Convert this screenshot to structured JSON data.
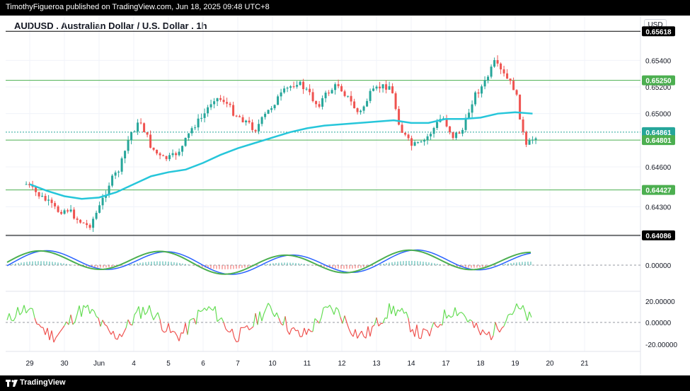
{
  "header": {
    "publisher": "TimothyFigueroa published on TradingView.com, Jun 18, 2025 09:48 UTC+8",
    "title": "AUDUSD . Australian Dollar / U.S. Dollar . 1h",
    "currency": "USD"
  },
  "footer": {
    "brand": "TradingView"
  },
  "chart_data": {
    "type": "line",
    "x": [
      "29",
      "30",
      "Jun",
      "4",
      "5",
      "6",
      "7",
      "10",
      "11",
      "12",
      "13",
      "14",
      "17",
      "18",
      "19",
      "20",
      "21"
    ],
    "price_axis_labels": [
      "0.65400",
      "0.65200",
      "0.65000",
      "0.64600",
      "0.64300",
      "0.00000",
      "20.00000",
      "0.00000",
      "-20.00000"
    ],
    "price_levels": [
      {
        "value": 0.65618,
        "label": "0.65618",
        "color": "#000000"
      },
      {
        "value": 0.6525,
        "label": "0.65250",
        "color": "#4caf50"
      },
      {
        "value": 0.64861,
        "label": "0.64861",
        "color": "#26a69a"
      },
      {
        "value": 0.64801,
        "label": "0.64801",
        "color": "#4caf50"
      },
      {
        "value": 0.64427,
        "label": "0.64427",
        "color": "#4caf50"
      },
      {
        "value": 0.64086,
        "label": "0.64086",
        "color": "#000000"
      }
    ],
    "ylim": [
      0.6408,
      0.6563
    ],
    "series": [
      {
        "x": [
          0,
          0.5,
          1,
          1.5,
          2,
          2.5,
          3,
          3.5,
          4,
          4.5,
          5,
          5.5,
          6,
          6.5,
          7,
          7.5,
          8,
          8.5,
          9,
          9.5,
          10,
          10.5,
          11,
          11.5,
          12,
          12.5,
          13,
          13.5,
          14,
          14.5
        ],
        "values": [
          0.6447,
          0.6442,
          0.6438,
          0.6436,
          0.6437,
          0.6441,
          0.6447,
          0.6453,
          0.6456,
          0.6458,
          0.6463,
          0.6469,
          0.6474,
          0.6478,
          0.6482,
          0.6486,
          0.6489,
          0.6491,
          0.6492,
          0.6493,
          0.6494,
          0.6495,
          0.6493,
          0.6493,
          0.6496,
          0.6496,
          0.6497,
          0.65,
          0.6501,
          0.65
        ],
        "color": "#26c6da"
      },
      {
        "x": [
          -0.1,
          0.2,
          0.5,
          0.8,
          1.1,
          1.4,
          1.7,
          2.0,
          2.3,
          2.6,
          2.9,
          3.2,
          3.5,
          3.8,
          4.1,
          4.4,
          4.7,
          5.0,
          5.3,
          5.6,
          5.9,
          6.2,
          6.5,
          6.8,
          7.1,
          7.4,
          7.7,
          8.0,
          8.3,
          8.6,
          8.9,
          9.2,
          9.5,
          9.8,
          10.1,
          10.4,
          10.7,
          11.0,
          11.3,
          11.6,
          11.9,
          12.2,
          12.5,
          12.8,
          13.1,
          13.4,
          13.7,
          14.0,
          14.3,
          14.6
        ],
        "values": [
          0.6447,
          0.644,
          0.6434,
          0.6427,
          0.6428,
          0.642,
          0.6415,
          0.6429,
          0.6448,
          0.6459,
          0.6485,
          0.6494,
          0.6475,
          0.6466,
          0.6467,
          0.6475,
          0.649,
          0.6498,
          0.6512,
          0.651,
          0.65,
          0.6495,
          0.6488,
          0.6499,
          0.651,
          0.6518,
          0.6524,
          0.6517,
          0.6506,
          0.6516,
          0.6522,
          0.6511,
          0.6499,
          0.6514,
          0.652,
          0.6521,
          0.6488,
          0.6476,
          0.6477,
          0.6487,
          0.6498,
          0.6483,
          0.6488,
          0.6513,
          0.6522,
          0.6538,
          0.6528,
          0.6518,
          0.6474,
          0.6484
        ],
        "color": "#26a69a"
      }
    ]
  }
}
